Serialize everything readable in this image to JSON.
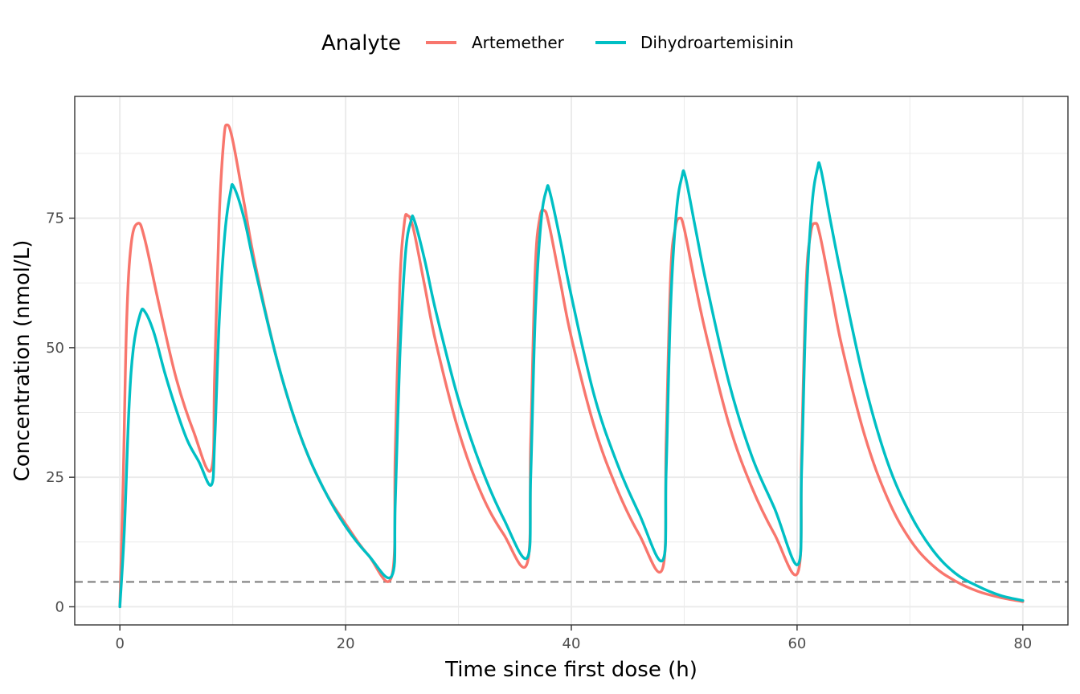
{
  "chart_data": {
    "type": "line",
    "title": "",
    "xlabel": "Time since first dose (h)",
    "ylabel": "Concentration (nmol/L)",
    "xlim": [
      -4,
      84
    ],
    "ylim": [
      -3.5,
      98.5
    ],
    "x_ticks": [
      0,
      20,
      40,
      60,
      80
    ],
    "y_ticks": [
      0,
      25,
      50,
      75
    ],
    "grid": true,
    "legend": {
      "title": "Analyte",
      "position": "top"
    },
    "reference_line": {
      "y": 4.8,
      "style": "dashed",
      "color": "#7f7f7f"
    },
    "series": [
      {
        "name": "Artemether",
        "color": "#F8766D",
        "points": [
          [
            0,
            0
          ],
          [
            0.3,
            25
          ],
          [
            0.6,
            55
          ],
          [
            1,
            70
          ],
          [
            1.6,
            74
          ],
          [
            2.2,
            71
          ],
          [
            3.5,
            58
          ],
          [
            5,
            44
          ],
          [
            6.5,
            34
          ],
          [
            8.1,
            26.5
          ],
          [
            8.4,
            45
          ],
          [
            8.8,
            75
          ],
          [
            9.2,
            90
          ],
          [
            9.5,
            93
          ],
          [
            10,
            90
          ],
          [
            11,
            78
          ],
          [
            12,
            66
          ],
          [
            14,
            47
          ],
          [
            16,
            33
          ],
          [
            18,
            23
          ],
          [
            20,
            16
          ],
          [
            22,
            10
          ],
          [
            24.1,
            6
          ],
          [
            24.4,
            30
          ],
          [
            24.8,
            62
          ],
          [
            25.2,
            74
          ],
          [
            25.5,
            75.5
          ],
          [
            26,
            73
          ],
          [
            27,
            62
          ],
          [
            28,
            51
          ],
          [
            30,
            34
          ],
          [
            32,
            22
          ],
          [
            34,
            14
          ],
          [
            36.1,
            8.5
          ],
          [
            36.4,
            32
          ],
          [
            36.8,
            65
          ],
          [
            37.2,
            75
          ],
          [
            37.6,
            76.5
          ],
          [
            38,
            74
          ],
          [
            39,
            63
          ],
          [
            40,
            52
          ],
          [
            42,
            35
          ],
          [
            44,
            23
          ],
          [
            46,
            14
          ],
          [
            48.1,
            7.5
          ],
          [
            48.4,
            32
          ],
          [
            48.8,
            64
          ],
          [
            49.2,
            73
          ],
          [
            49.6,
            75
          ],
          [
            50,
            73
          ],
          [
            51,
            62
          ],
          [
            52,
            52
          ],
          [
            54,
            35
          ],
          [
            56,
            23
          ],
          [
            58,
            14
          ],
          [
            60.1,
            6.8
          ],
          [
            60.4,
            30
          ],
          [
            60.8,
            62
          ],
          [
            61.2,
            72
          ],
          [
            61.6,
            74
          ],
          [
            62,
            72
          ],
          [
            63,
            61
          ],
          [
            64,
            50
          ],
          [
            66,
            33
          ],
          [
            68,
            21
          ],
          [
            70,
            13
          ],
          [
            72,
            8
          ],
          [
            74,
            5
          ],
          [
            76,
            3
          ],
          [
            78,
            1.8
          ],
          [
            80,
            1
          ]
        ]
      },
      {
        "name": "Dihydroartemisinin",
        "color": "#00BFC4",
        "points": [
          [
            0,
            0
          ],
          [
            0.4,
            15
          ],
          [
            0.8,
            38
          ],
          [
            1.2,
            50
          ],
          [
            1.8,
            56.5
          ],
          [
            2.2,
            57
          ],
          [
            3,
            53
          ],
          [
            4,
            45
          ],
          [
            5,
            38
          ],
          [
            6,
            32
          ],
          [
            7,
            28
          ],
          [
            8.1,
            23.5
          ],
          [
            8.4,
            32
          ],
          [
            8.8,
            55
          ],
          [
            9.3,
            72
          ],
          [
            9.8,
            80
          ],
          [
            10.1,
            81
          ],
          [
            11,
            75
          ],
          [
            12,
            65
          ],
          [
            14,
            47
          ],
          [
            16,
            33
          ],
          [
            18,
            23
          ],
          [
            20,
            15.5
          ],
          [
            22,
            10
          ],
          [
            24.1,
            6
          ],
          [
            24.4,
            20
          ],
          [
            24.8,
            48
          ],
          [
            25.3,
            68
          ],
          [
            25.8,
            74.5
          ],
          [
            26.1,
            74.5
          ],
          [
            27,
            67
          ],
          [
            28,
            57
          ],
          [
            30,
            40
          ],
          [
            32,
            27
          ],
          [
            34,
            17
          ],
          [
            36.1,
            9.5
          ],
          [
            36.4,
            25
          ],
          [
            36.8,
            56
          ],
          [
            37.3,
            74
          ],
          [
            37.8,
            80.5
          ],
          [
            38.1,
            80
          ],
          [
            39,
            71
          ],
          [
            40,
            60
          ],
          [
            42,
            41
          ],
          [
            44,
            28
          ],
          [
            46,
            18
          ],
          [
            48.1,
            9
          ],
          [
            48.4,
            26
          ],
          [
            48.8,
            58
          ],
          [
            49.3,
            76
          ],
          [
            49.8,
            83
          ],
          [
            50.1,
            83
          ],
          [
            51,
            73
          ],
          [
            52,
            62
          ],
          [
            54,
            43
          ],
          [
            56,
            29
          ],
          [
            58,
            19
          ],
          [
            60.1,
            8.2
          ],
          [
            60.4,
            26
          ],
          [
            60.8,
            58
          ],
          [
            61.3,
            77
          ],
          [
            61.8,
            84.5
          ],
          [
            62.1,
            84.5
          ],
          [
            63,
            74
          ],
          [
            64,
            63
          ],
          [
            66,
            43
          ],
          [
            68,
            28
          ],
          [
            70,
            18
          ],
          [
            72,
            11
          ],
          [
            74,
            6.5
          ],
          [
            76,
            4
          ],
          [
            78,
            2.2
          ],
          [
            80,
            1.2
          ]
        ]
      }
    ]
  }
}
